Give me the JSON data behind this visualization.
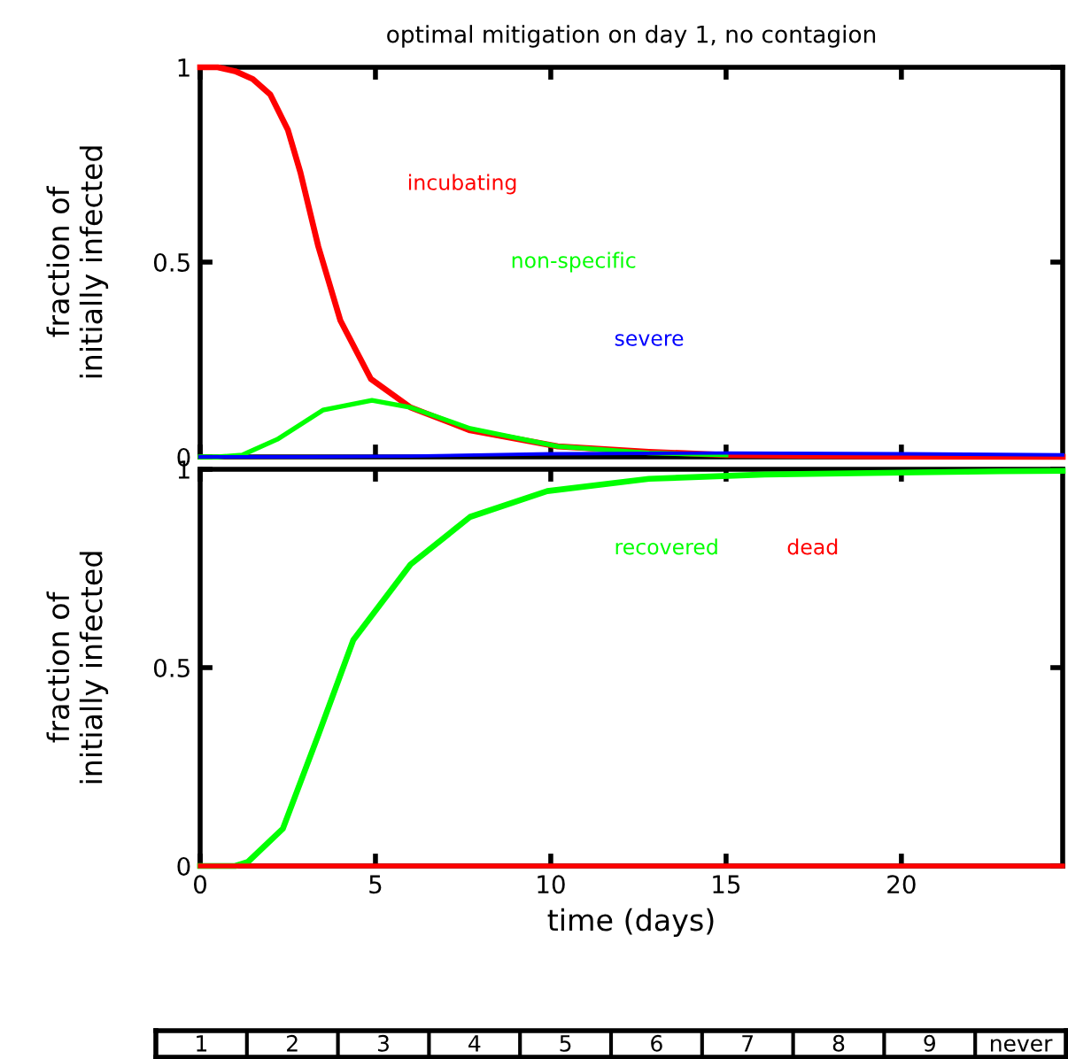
{
  "chart_data": [
    {
      "type": "line",
      "title": "optimal mitigation on day 1, no contagion",
      "ylabel": "fraction of\ninitially infected",
      "xlim": [
        0,
        24.6
      ],
      "xticks": [
        0,
        5,
        10,
        15,
        20
      ],
      "ylim": [
        0,
        1
      ],
      "yticks": [
        0,
        0.5,
        1
      ],
      "tick_labels": "y",
      "grid": false,
      "legend": false,
      "series": [
        {
          "name": "incubating",
          "color": "#ff0000",
          "x": [
            0,
            0.5,
            1.0,
            1.5,
            2.0,
            2.5,
            2.86,
            3.37,
            4.0,
            4.87,
            6.0,
            7.7,
            10.2,
            12.8,
            15,
            20,
            24.6
          ],
          "values": [
            1,
            1,
            0.99,
            0.97,
            0.93,
            0.84,
            0.73,
            0.54,
            0.35,
            0.2,
            0.127,
            0.068,
            0.027,
            0.013,
            0.005,
            0.001,
            0
          ]
        },
        {
          "name": "non-specific",
          "color": "#00ff00",
          "x": [
            0,
            0.5,
            1.2,
            2.2,
            3.5,
            4.9,
            6.0,
            7.7,
            10.2,
            12.8,
            15
          ],
          "values": [
            0,
            0,
            0.005,
            0.045,
            0.12,
            0.145,
            0.127,
            0.073,
            0.027,
            0.01,
            0.005
          ]
        },
        {
          "name": "severe",
          "color": "#0000ff",
          "x": [
            0,
            3,
            6,
            10,
            15,
            20,
            24.6
          ],
          "values": [
            0,
            0,
            0.002,
            0.008,
            0.01,
            0.008,
            0.005
          ]
        }
      ]
    },
    {
      "type": "line",
      "xlabel": "time (days)",
      "ylabel": "fraction of\ninitially infected",
      "xlim": [
        0,
        24.6
      ],
      "xticks": [
        0,
        5,
        10,
        15,
        20
      ],
      "ylim": [
        0,
        1
      ],
      "yticks": [
        0,
        0.5,
        1
      ],
      "grid": false,
      "legend": false,
      "series": [
        {
          "name": "recovered",
          "color": "#00ff00",
          "x": [
            0,
            1.0,
            1.36,
            2.36,
            3.37,
            4.37,
            6.0,
            7.7,
            9.9,
            12.8,
            16.1,
            22.8,
            24.6
          ],
          "values": [
            0,
            0,
            0.01,
            0.094,
            0.33,
            0.57,
            0.76,
            0.88,
            0.945,
            0.976,
            0.987,
            0.995,
            0.996
          ]
        },
        {
          "name": "dead",
          "color": "#ff0000",
          "x": [
            0,
            24.6
          ],
          "values": [
            0,
            0
          ]
        }
      ],
      "annotations": [
        "1",
        "2",
        "3",
        "4",
        "5",
        "6",
        "7",
        "8",
        "9",
        "never"
      ]
    }
  ]
}
